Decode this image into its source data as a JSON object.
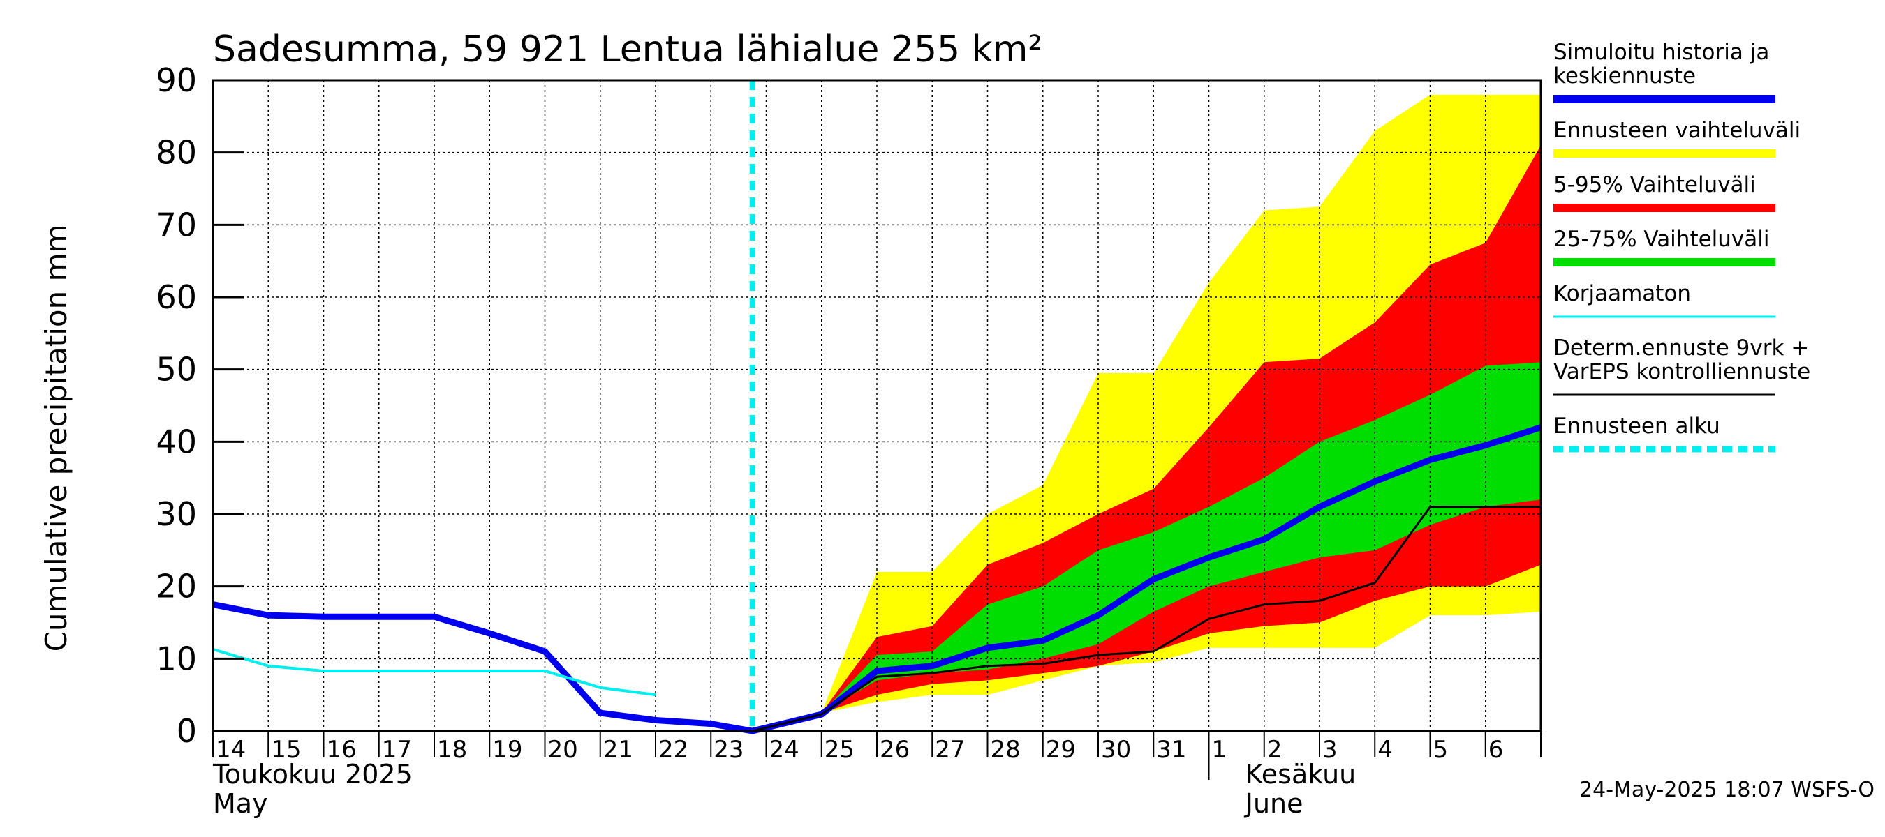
{
  "chart_data": {
    "type": "area",
    "title": "Sadesumma, 59 921 Lentua lähialue 255 km²",
    "ylabel": "Cumulative precipitation   mm",
    "xlabel": "",
    "ylim": [
      0,
      90
    ],
    "yticks": [
      "0",
      "10",
      "20",
      "30",
      "40",
      "50",
      "60",
      "70",
      "80",
      "90"
    ],
    "grid": true,
    "legend_position": "right",
    "x_day_labels": [
      "14",
      "15",
      "16",
      "17",
      "18",
      "19",
      "20",
      "21",
      "22",
      "23",
      "24",
      "25",
      "26",
      "27",
      "28",
      "29",
      "30",
      "31",
      "1",
      "2",
      "3",
      "4",
      "5",
      "6"
    ],
    "month_labels": {
      "may_fi": "Toukokuu  2025",
      "may_en": "May",
      "june_fi": "Kesäkuu",
      "june_en": "June"
    },
    "forecast_start_day": 23.75,
    "forecast_days": [
      25,
      26,
      27,
      28,
      29,
      30,
      31,
      32,
      33,
      34,
      35,
      36,
      37,
      38
    ],
    "series": [
      {
        "name": "Ennusteen vaihteluväli",
        "color": "#ffff00",
        "kind": "band",
        "x": [
          23.75,
          25,
          26,
          27,
          28,
          29,
          30,
          31,
          32,
          33,
          34,
          35,
          36,
          37,
          38
        ],
        "upper": [
          0,
          2.5,
          22,
          22,
          30,
          34,
          49.5,
          49.5,
          62,
          72,
          72.5,
          83,
          88,
          88,
          88
        ],
        "lower": [
          0,
          2.5,
          4,
          5,
          5,
          7,
          9,
          9.5,
          11.5,
          11.5,
          11.5,
          11.5,
          16,
          16,
          16.5
        ]
      },
      {
        "name": "5-95% Vaihteluväli",
        "color": "#ff0000",
        "kind": "band",
        "x": [
          23.75,
          25,
          26,
          27,
          28,
          29,
          30,
          31,
          32,
          33,
          34,
          35,
          36,
          37,
          38
        ],
        "upper": [
          0,
          2.5,
          13,
          14.5,
          23,
          26,
          30,
          33.5,
          42,
          51,
          51.5,
          56.5,
          64.5,
          67.5,
          81
        ],
        "lower": [
          0,
          2.5,
          5,
          6.5,
          7,
          8,
          9,
          11,
          13.5,
          14.5,
          15,
          18,
          20,
          20,
          23
        ]
      },
      {
        "name": "25-75% Vaihteluväli",
        "color": "#00dd00",
        "kind": "band",
        "x": [
          23.75,
          25,
          26,
          27,
          28,
          29,
          30,
          31,
          32,
          33,
          34,
          35,
          36,
          37,
          38
        ],
        "upper": [
          0,
          2.5,
          10.5,
          11,
          17.5,
          20,
          25,
          27.5,
          31,
          35,
          40,
          43,
          46.5,
          50.5,
          51
        ],
        "lower": [
          0,
          2.5,
          7,
          8,
          8.5,
          10,
          12,
          16.5,
          20,
          22,
          24,
          25,
          28.5,
          31,
          32
        ]
      },
      {
        "name": "Simuloitu historia ja keskiennuste",
        "color": "#0000ee",
        "kind": "line",
        "x": [
          14,
          15,
          16,
          17,
          18,
          19,
          20,
          21,
          22,
          23,
          23.75,
          25,
          26,
          27,
          28,
          29,
          30,
          31,
          32,
          33,
          34,
          35,
          36,
          37,
          38
        ],
        "values": [
          17.5,
          16,
          15.8,
          15.8,
          15.8,
          13.5,
          11,
          2.5,
          1.5,
          1,
          0,
          2.3,
          8.3,
          9,
          11.5,
          12.5,
          16,
          21,
          24,
          26.5,
          31,
          34.5,
          37.5,
          39.5,
          42
        ]
      },
      {
        "name": "Korjaamaton",
        "color": "#00eeee",
        "kind": "line",
        "x": [
          14,
          15,
          16,
          17,
          18,
          19,
          20,
          21,
          22
        ],
        "values": [
          11.3,
          9,
          8.3,
          8.3,
          8.3,
          8.3,
          8.3,
          6,
          5
        ]
      },
      {
        "name": "Determ.ennuste 9vrk + VarEPS kontrolliennuste",
        "color": "#000000",
        "kind": "line",
        "x": [
          23.75,
          25,
          26,
          27,
          28,
          29,
          30,
          31,
          32,
          33,
          34,
          35,
          36,
          37,
          38
        ],
        "values": [
          0,
          2.3,
          7.5,
          8,
          9,
          9.3,
          10.5,
          11,
          15.5,
          17.5,
          18,
          20.5,
          31,
          31,
          31
        ]
      }
    ],
    "legend": [
      {
        "label": "Simuloitu historia ja\nkeskiennuste",
        "color": "#0000ee",
        "style": "thick"
      },
      {
        "label": "Ennusteen vaihteluväli",
        "color": "#ffff00",
        "style": "thick"
      },
      {
        "label": "5-95% Vaihteluväli",
        "color": "#ff0000",
        "style": "thick"
      },
      {
        "label": "25-75% Vaihteluväli",
        "color": "#00dd00",
        "style": "thick"
      },
      {
        "label": "Korjaamaton",
        "color": "#00eeee",
        "style": "thin"
      },
      {
        "label": "Determ.ennuste 9vrk +\nVarEPS kontrolliennuste",
        "color": "#000000",
        "style": "thin"
      },
      {
        "label": "Ennusteen alku",
        "color": "#00eeee",
        "style": "dashed"
      }
    ],
    "timestamp": "24-May-2025 18:07 WSFS-O"
  }
}
